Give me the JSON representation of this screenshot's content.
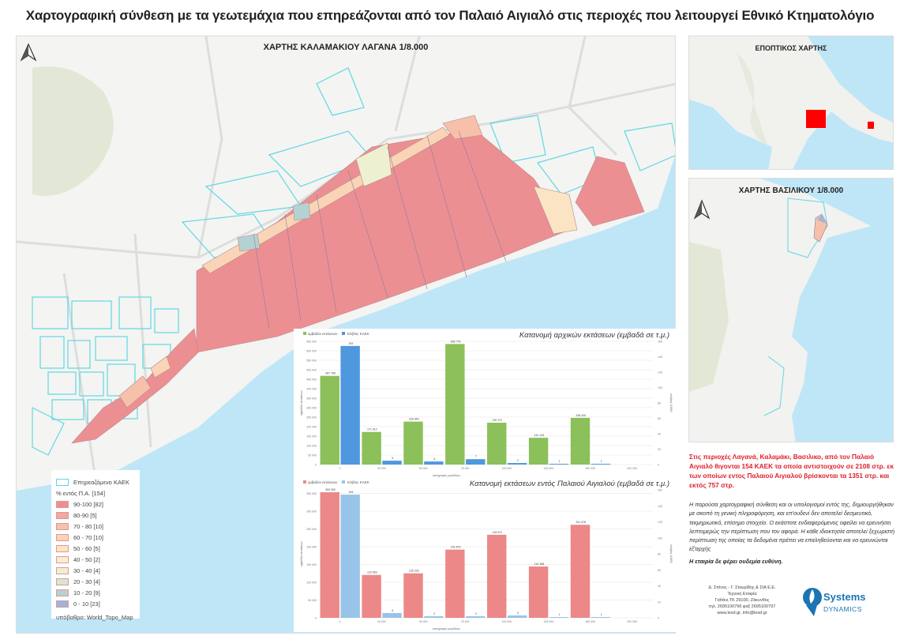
{
  "title": "Χαρτογραφική σύνθεση με τα γεωτεμάχια που επηρεάζονται από τον Παλαιό Αιγιαλό στις περιοχές που λειτουργεί Εθνικό Κτηματολόγιο",
  "main_map": {
    "title": "ΧΑΡΤΗΣ ΚΑΛΑΜΑΚΙΟΥ ΛΑΓΑΝΑ 1/8.000",
    "north_arrow_icon": "north-arrow-icon"
  },
  "overview_map": {
    "title": "ΕΠΟΠΤΙΚΟΣ ΧΑΡΤΗΣ",
    "marker_color": "#ff0000"
  },
  "vasiliko_map": {
    "title": "ΧΑΡΤΗΣ ΒΑΣΙΛΙΚΟΥ 1/8.000",
    "north_arrow_icon": "north-arrow-icon"
  },
  "legend": {
    "affected_label": "Επηρεαζόμενο ΚΑΕΚ",
    "group_label": "% εντός Π.Α. [154]",
    "classes": [
      {
        "label": "90-100 [82]",
        "color": "#ec8f93"
      },
      {
        "label": "80-90 [5]",
        "color": "#f3a7a2"
      },
      {
        "label": "70 - 80 [10]",
        "color": "#f7c0ab"
      },
      {
        "label": "60 - 70 [10]",
        "color": "#f9d4b6"
      },
      {
        "label": "50 - 60 [5]",
        "color": "#fbe4c3"
      },
      {
        "label": "40 - 50 [2]",
        "color": "#fcecd2"
      },
      {
        "label": "30 - 40 [4]",
        "color": "#eef0d2"
      },
      {
        "label": "20 - 30 [4]",
        "color": "#d6e6d2"
      },
      {
        "label": "10 - 20 [9]",
        "color": "#b4d2d4"
      },
      {
        "label": "0 - 10 [23]",
        "color": "#9fb4dc"
      }
    ],
    "basemap": "υπόβαθρο: World_Topo_Map"
  },
  "chart_data": [
    {
      "type": "bar",
      "title": "Κατανομή αρχικών εκτάσεων (εμβαδά σε τ.μ.)",
      "xlabel": "κατηγορίες μεγέθους",
      "ylabel": "εμβαδόν εκτάσεων",
      "y2label": "πλήθος ΚΑΕΚ",
      "categories": [
        "0",
        "25 000",
        "50 000",
        "75 000",
        "100 000",
        "125 000",
        "150 000",
        "200 000"
      ],
      "ylim": [
        0,
        650000
      ],
      "y2lim": [
        0,
        160
      ],
      "legend": "top-left",
      "series": [
        {
          "name": "εμβαδόν εκτάσεων",
          "axis": "left",
          "color": "#8bc05a",
          "values": [
            467788,
            171912,
            226444,
            635776,
            220737,
            141143,
            246040,
            null
          ]
        },
        {
          "name": "πλήθος ΚΑΕΚ",
          "axis": "right",
          "color": "#4f97de",
          "values": [
            154,
            5,
            4,
            7,
            2,
            1,
            1,
            null
          ]
        }
      ]
    },
    {
      "type": "bar",
      "title": "Κατανομή εκτάσεων εντός Παλαιού Αιγιαλού (εμβαδά σε τ.μ.)",
      "xlabel": "κατηγορίες μεγέθους",
      "ylabel": "εμβαδόν εκτάσεων",
      "y2label": "πλήθος ΚΑΕΚ",
      "categories": [
        "0",
        "25 000",
        "50 000",
        "75 000",
        "100 000",
        "125 000",
        "150 000",
        "200 000"
      ],
      "ylim": [
        0,
        360000
      ],
      "y2lim": [
        0,
        160
      ],
      "legend": "top-left",
      "series": [
        {
          "name": "εμβαδόν εκτάσεων",
          "axis": "left",
          "color": "#ec8888",
          "values": [
            353283,
            120663,
            125233,
            191873,
            233571,
            144368,
            261678,
            null
          ]
        },
        {
          "name": "πλήθος ΚΑΕΚ",
          "axis": "right",
          "color": "#98c4ea",
          "values": [
            154,
            6,
            2,
            2,
            3,
            1,
            1,
            null
          ]
        }
      ]
    }
  ],
  "summary": "Στις περιοχές Λαγανά, Καλαμάκι, Βασιλικο, από τον Παλαιό Αιγιαλό θιγονται 154 ΚΑΕΚ τα οποία αντιστοιχούν σε 2108 στρ. εκ των οποίων εντος Παλαιού Αιγιαλού βρίσκονται τα 1351 στρ. και εκτός 757 στρ.",
  "disclaimer": "Η παρούσα χαρτογραφική σύνθεση και οι υπολογισμοί εντός της, δημιουργήθηκαν με σκοπό τη γενική πληροφόρηση, και επ'ουδενί δεν αποτελεί δεσμευτικό, τεκμηριωτικό, επίσημο στοιχείο. Ο εκάστοτε ενδιαφερόμενος οφείλει να ερευνήσει λεπτομερώς την περίπτωση που τον αφορά. Η κάθε ιδιοκτησία αποτελεί ξεχωριστή περίπτωση της οποίας τα δεδομένα πρέπει να επαληθεύονται και να ερευνώνται εξ'αρχής",
  "no_responsibility": "Η εταιρία δε φέρει ουδεμία ευθύνη.",
  "company": {
    "lines": [
      "Δ. Σπίνος - Γ. Σταυρίδης & ΣΙΑ Ε.Ε.",
      "Τεχνική Εταιρία",
      "Γαΐτάνι,ΤΚ 29100, Ζάκυνθος",
      "τηλ. 2695100796 φαξ 2695100797",
      "www.lesd.gr, info@lesd.gr"
    ],
    "logo_word1": "Systems",
    "logo_word2": "DYNAMICS",
    "logo_color": "#1b75b5"
  }
}
